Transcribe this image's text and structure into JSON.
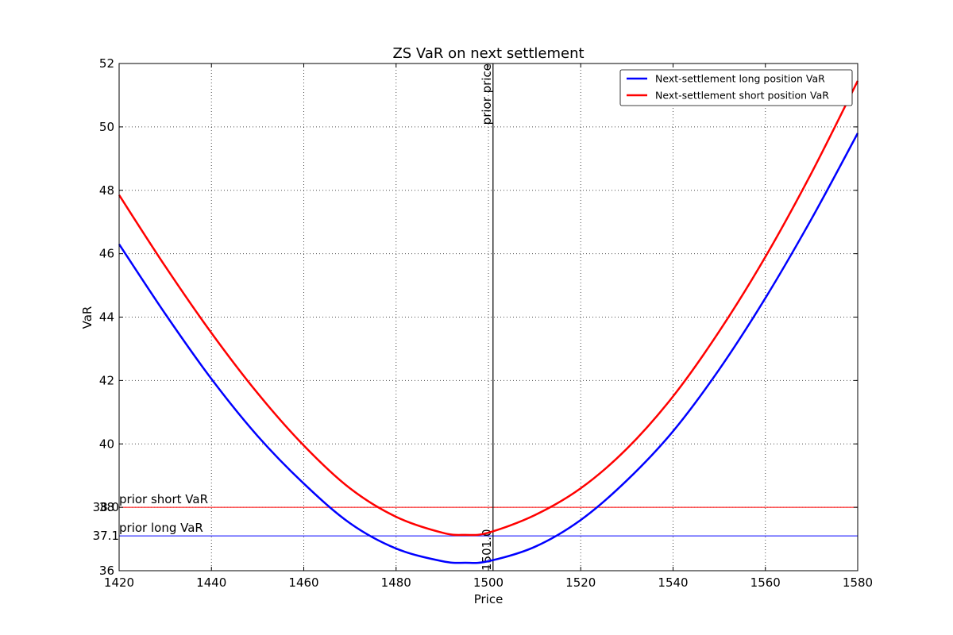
{
  "chart_data": {
    "type": "line",
    "title": "ZS VaR on next settlement",
    "xlabel": "Price",
    "ylabel": "VaR",
    "xlim": [
      1420,
      1580
    ],
    "ylim": [
      36,
      52
    ],
    "xticks": [
      1420,
      1440,
      1460,
      1480,
      1500,
      1520,
      1540,
      1560,
      1580
    ],
    "yticks": [
      36,
      38,
      40,
      42,
      44,
      46,
      48,
      50,
      52
    ],
    "grid": true,
    "legend_position": "top-right",
    "series": [
      {
        "name": "Next-settlement long position VaR",
        "color": "#0000ff",
        "x": [
          1420,
          1430,
          1440,
          1450,
          1460,
          1470,
          1480,
          1490,
          1495,
          1500,
          1510,
          1520,
          1530,
          1540,
          1550,
          1560,
          1570,
          1580
        ],
        "y": [
          46.3,
          44.1,
          42.05,
          40.25,
          38.75,
          37.5,
          36.7,
          36.3,
          36.25,
          36.3,
          36.75,
          37.6,
          38.85,
          40.4,
          42.35,
          44.6,
          47.1,
          49.8
        ]
      },
      {
        "name": "Next-settlement short position VaR",
        "color": "#ff0000",
        "x": [
          1420,
          1430,
          1440,
          1450,
          1460,
          1470,
          1480,
          1490,
          1495,
          1500,
          1510,
          1520,
          1530,
          1540,
          1550,
          1560,
          1570,
          1580
        ],
        "y": [
          47.85,
          45.6,
          43.5,
          41.6,
          39.95,
          38.6,
          37.7,
          37.2,
          37.13,
          37.2,
          37.75,
          38.6,
          39.85,
          41.5,
          43.55,
          45.9,
          48.55,
          51.45
        ]
      }
    ],
    "reference_lines": [
      {
        "orientation": "horizontal",
        "value": 38.0,
        "color": "#ff0000",
        "label": "prior short VaR",
        "value_label": "38.0"
      },
      {
        "orientation": "horizontal",
        "value": 37.1,
        "color": "#0000ff",
        "label": "prior long VaR",
        "value_label": "37.1"
      },
      {
        "orientation": "vertical",
        "value": 1501.0,
        "color": "#000000",
        "label": "prior price",
        "value_label": "1501.0"
      }
    ]
  }
}
